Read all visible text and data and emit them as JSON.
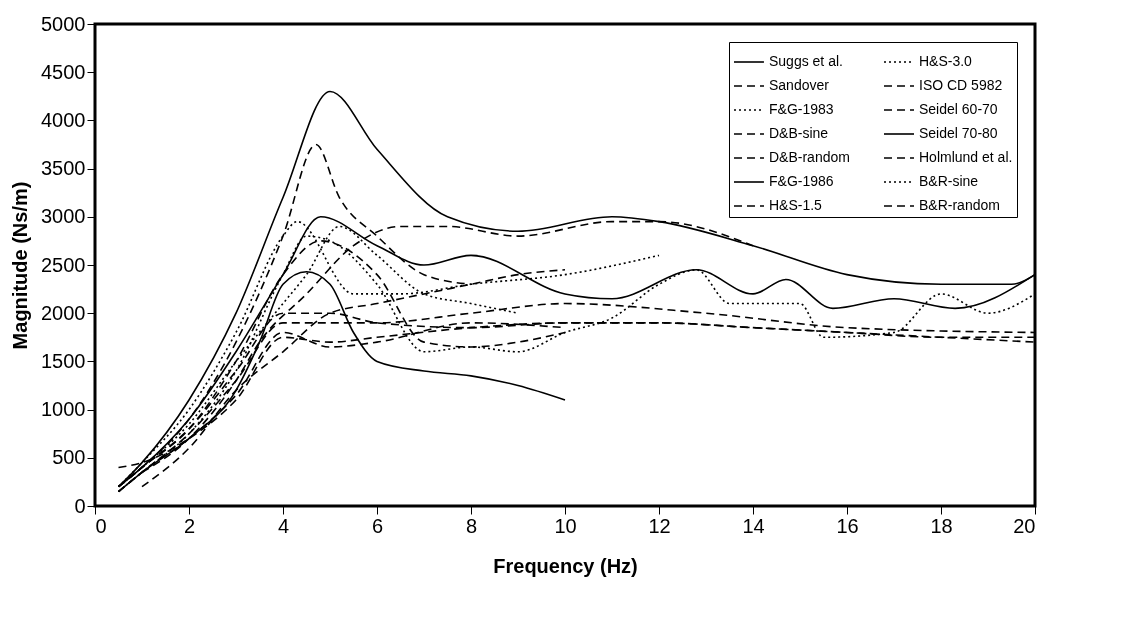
{
  "chart_data": {
    "type": "line",
    "xlabel": "Frequency (Hz)",
    "ylabel": "Magnitude (Ns/m)",
    "xlim": [
      0,
      20
    ],
    "ylim": [
      0,
      5000
    ],
    "xticks": [
      0,
      2,
      4,
      6,
      8,
      10,
      12,
      14,
      16,
      18,
      20
    ],
    "yticks": [
      0,
      500,
      1000,
      1500,
      2000,
      2500,
      3000,
      3500,
      4000,
      4500,
      5000
    ],
    "grid": false,
    "legend": "top right",
    "series": [
      {
        "name": "Suggs et al.",
        "color": "#000000",
        "line_style": "solid",
        "x": [
          0.5,
          1,
          2,
          3,
          3.5,
          4,
          4.5,
          5,
          5.5,
          6,
          7,
          8,
          9,
          10
        ],
        "values": [
          150,
          350,
          700,
          1200,
          1700,
          2300,
          2430,
          2300,
          1800,
          1500,
          1400,
          1350,
          1250,
          1100
        ]
      },
      {
        "name": "Sandover",
        "color": "#000000",
        "line_style": "dashed",
        "x": [
          0.5,
          1,
          2,
          3,
          4,
          5,
          6,
          8,
          10,
          12,
          14,
          16,
          18,
          20
        ],
        "values": [
          400,
          450,
          700,
          1100,
          1750,
          1700,
          1750,
          1850,
          1900,
          1900,
          1850,
          1800,
          1750,
          1700
        ]
      },
      {
        "name": "F&G-1983",
        "color": "#000000",
        "line_style": "dotted",
        "x": [
          0.5,
          1,
          2,
          3,
          4,
          4.5,
          5,
          6,
          7,
          8,
          9,
          10,
          11,
          12,
          12.8,
          13.5,
          15,
          15.5,
          17,
          18,
          19,
          20
        ],
        "values": [
          150,
          350,
          750,
          1400,
          2400,
          2800,
          2750,
          2300,
          1600,
          1650,
          1600,
          1800,
          1950,
          2300,
          2450,
          2100,
          2100,
          1750,
          1800,
          2200,
          2000,
          2200
        ]
      },
      {
        "name": "D&B-sine",
        "color": "#000000",
        "line_style": "dashed",
        "x": [
          0.5,
          1,
          2,
          3,
          4,
          4.8,
          6,
          7,
          8,
          9,
          10
        ],
        "values": [
          200,
          400,
          800,
          1500,
          2400,
          2750,
          2400,
          1700,
          1650,
          1700,
          1800
        ]
      },
      {
        "name": "D&B-random",
        "color": "#000000",
        "line_style": "dashed",
        "x": [
          0.5,
          1,
          2,
          3,
          4,
          5,
          6,
          8,
          10
        ],
        "values": [
          150,
          350,
          700,
          1150,
          1800,
          1650,
          1700,
          1900,
          1850
        ]
      },
      {
        "name": "F&G-1986",
        "color": "#000000",
        "line_style": "solid",
        "x": [
          0.5,
          1,
          2,
          3,
          4,
          5,
          6,
          7.5,
          9,
          11,
          12,
          14,
          16,
          18,
          19.5,
          20
        ],
        "values": [
          200,
          450,
          1100,
          2000,
          3200,
          4300,
          3700,
          3000,
          2850,
          3000,
          2950,
          2700,
          2400,
          2300,
          2300,
          2400
        ]
      },
      {
        "name": "H&S-1.5",
        "color": "#000000",
        "line_style": "dashed",
        "x": [
          0.5,
          1,
          2,
          3,
          4,
          4.7,
          5.2,
          6,
          7,
          8
        ],
        "values": [
          200,
          400,
          900,
          1700,
          2800,
          3750,
          3200,
          2800,
          2400,
          2300
        ]
      },
      {
        "name": "H&S-3.0",
        "color": "#000000",
        "line_style": "dotted",
        "x": [
          0.5,
          1,
          2,
          3,
          4,
          4.3,
          5.5,
          6.5,
          8,
          10,
          12
        ],
        "values": [
          200,
          450,
          1000,
          1800,
          2800,
          2950,
          2200,
          2200,
          2300,
          2400,
          2600
        ]
      },
      {
        "name": "ISO CD 5982",
        "color": "#000000",
        "line_style": "dashed",
        "x": [
          0.5,
          1,
          2,
          3,
          4,
          5,
          6,
          8,
          10,
          12,
          14,
          16,
          18,
          20
        ],
        "values": [
          200,
          400,
          800,
          1400,
          2000,
          2000,
          1900,
          1850,
          1900,
          1900,
          1850,
          1800,
          1750,
          1750
        ]
      },
      {
        "name": "Seidel 60-70",
        "color": "#000000",
        "line_style": "dashed",
        "x": [
          1,
          2,
          3,
          3.5,
          4.5,
          5.5,
          6.5,
          7.5,
          9,
          11,
          12,
          14
        ],
        "values": [
          350,
          700,
          1300,
          1700,
          2200,
          2700,
          2900,
          2900,
          2800,
          2950,
          2950,
          2700
        ]
      },
      {
        "name": "Seidel 70-80",
        "color": "#000000",
        "line_style": "solid",
        "x": [
          0.5,
          1,
          2,
          3,
          4,
          4.8,
          6,
          7,
          8,
          10,
          11,
          12.8,
          14,
          14.7,
          15.7,
          17,
          18.3,
          20
        ],
        "values": [
          200,
          400,
          900,
          1600,
          2400,
          3000,
          2700,
          2500,
          2600,
          2200,
          2150,
          2450,
          2200,
          2350,
          2050,
          2150,
          2050,
          2400
        ]
      },
      {
        "name": "Holmlund et al.",
        "color": "#000000",
        "line_style": "dashed",
        "x": [
          0.5,
          1,
          2,
          3,
          4,
          6,
          8,
          10,
          13,
          16,
          20
        ],
        "values": [
          150,
          350,
          750,
          1300,
          1900,
          1900,
          2000,
          2100,
          2000,
          1850,
          1800
        ]
      },
      {
        "name": "B&R-sine",
        "color": "#000000",
        "line_style": "dotted",
        "x": [
          0.5,
          1,
          2,
          3,
          4,
          4.5,
          5.2,
          6,
          7,
          8,
          9
        ],
        "values": [
          200,
          400,
          850,
          1500,
          2100,
          2400,
          2900,
          2600,
          2200,
          2100,
          2000
        ]
      },
      {
        "name": "B&R-random",
        "color": "#000000",
        "line_style": "dashed",
        "x": [
          1,
          2,
          3,
          4,
          5,
          6,
          7,
          8,
          9,
          10
        ],
        "values": [
          200,
          600,
          1200,
          1600,
          2000,
          2100,
          2200,
          2300,
          2400,
          2450
        ]
      }
    ]
  }
}
